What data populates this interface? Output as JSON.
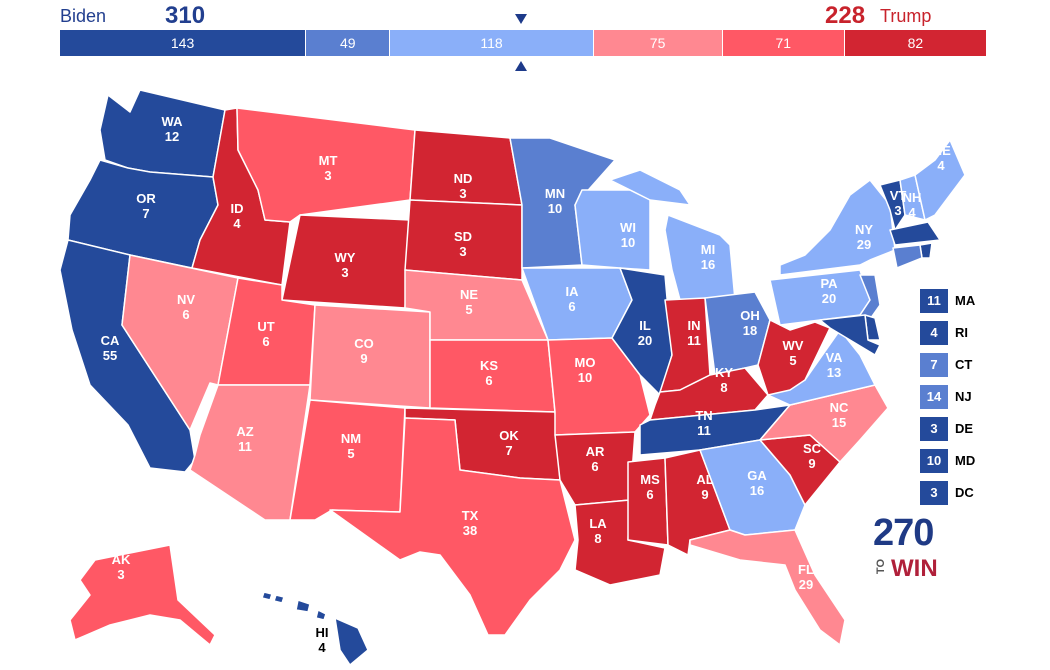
{
  "header": {
    "left_name": "Biden",
    "left_total": "310",
    "right_name": "Trump",
    "right_total": "228"
  },
  "segments": [
    {
      "value": "143",
      "color": "#244a9b"
    },
    {
      "value": "49",
      "color": "#5a7fd0"
    },
    {
      "value": "118",
      "color": "#8aaff9"
    },
    {
      "value": "75",
      "color": "#ff8891"
    },
    {
      "value": "71",
      "color": "#ff5865"
    },
    {
      "value": "82",
      "color": "#d22532"
    }
  ],
  "categories": {
    "safe_dem": "#244a9b",
    "likely_dem": "#5a7fd0",
    "lean_dem": "#8aaff9",
    "lean_rep": "#ff8891",
    "likely_rep": "#ff5865",
    "safe_rep": "#d22532"
  },
  "states": [
    {
      "abbr": "WA",
      "votes": "12",
      "cat": "safe_dem"
    },
    {
      "abbr": "OR",
      "votes": "7",
      "cat": "safe_dem"
    },
    {
      "abbr": "CA",
      "votes": "55",
      "cat": "safe_dem"
    },
    {
      "abbr": "ID",
      "votes": "4",
      "cat": "safe_rep"
    },
    {
      "abbr": "NV",
      "votes": "6",
      "cat": "lean_rep"
    },
    {
      "abbr": "MT",
      "votes": "3",
      "cat": "likely_rep"
    },
    {
      "abbr": "WY",
      "votes": "3",
      "cat": "safe_rep"
    },
    {
      "abbr": "UT",
      "votes": "6",
      "cat": "likely_rep"
    },
    {
      "abbr": "AZ",
      "votes": "11",
      "cat": "lean_rep"
    },
    {
      "abbr": "CO",
      "votes": "9",
      "cat": "lean_rep"
    },
    {
      "abbr": "NM",
      "votes": "5",
      "cat": "likely_rep"
    },
    {
      "abbr": "ND",
      "votes": "3",
      "cat": "safe_rep"
    },
    {
      "abbr": "SD",
      "votes": "3",
      "cat": "safe_rep"
    },
    {
      "abbr": "NE",
      "votes": "5",
      "cat": "lean_rep"
    },
    {
      "abbr": "KS",
      "votes": "6",
      "cat": "likely_rep"
    },
    {
      "abbr": "OK",
      "votes": "7",
      "cat": "safe_rep"
    },
    {
      "abbr": "TX",
      "votes": "38",
      "cat": "likely_rep"
    },
    {
      "abbr": "MN",
      "votes": "10",
      "cat": "likely_dem"
    },
    {
      "abbr": "IA",
      "votes": "6",
      "cat": "lean_dem"
    },
    {
      "abbr": "MO",
      "votes": "10",
      "cat": "likely_rep"
    },
    {
      "abbr": "AR",
      "votes": "6",
      "cat": "safe_rep"
    },
    {
      "abbr": "LA",
      "votes": "8",
      "cat": "safe_rep"
    },
    {
      "abbr": "WI",
      "votes": "10",
      "cat": "lean_dem"
    },
    {
      "abbr": "IL",
      "votes": "20",
      "cat": "safe_dem"
    },
    {
      "abbr": "MI",
      "votes": "16",
      "cat": "lean_dem"
    },
    {
      "abbr": "IN",
      "votes": "11",
      "cat": "safe_rep"
    },
    {
      "abbr": "OH",
      "votes": "18",
      "cat": "likely_dem"
    },
    {
      "abbr": "KY",
      "votes": "8",
      "cat": "safe_rep"
    },
    {
      "abbr": "TN",
      "votes": "11",
      "cat": "safe_dem"
    },
    {
      "abbr": "MS",
      "votes": "6",
      "cat": "safe_rep"
    },
    {
      "abbr": "AL",
      "votes": "9",
      "cat": "safe_rep"
    },
    {
      "abbr": "GA",
      "votes": "16",
      "cat": "lean_dem"
    },
    {
      "abbr": "FL",
      "votes": "29",
      "cat": "lean_rep"
    },
    {
      "abbr": "SC",
      "votes": "9",
      "cat": "safe_rep"
    },
    {
      "abbr": "NC",
      "votes": "15",
      "cat": "lean_rep"
    },
    {
      "abbr": "VA",
      "votes": "13",
      "cat": "lean_dem"
    },
    {
      "abbr": "WV",
      "votes": "5",
      "cat": "safe_rep"
    },
    {
      "abbr": "PA",
      "votes": "20",
      "cat": "lean_dem"
    },
    {
      "abbr": "NY",
      "votes": "29",
      "cat": "lean_dem"
    },
    {
      "abbr": "VT",
      "votes": "3",
      "cat": "safe_dem"
    },
    {
      "abbr": "NH",
      "votes": "4",
      "cat": "lean_dem"
    },
    {
      "abbr": "ME",
      "votes": "4",
      "cat": "lean_dem"
    },
    {
      "abbr": "AK",
      "votes": "3",
      "cat": "likely_rep"
    },
    {
      "abbr": "HI",
      "votes": "4",
      "cat": "safe_dem"
    }
  ],
  "small_states": [
    {
      "abbr": "MA",
      "votes": "11",
      "cat": "safe_dem"
    },
    {
      "abbr": "RI",
      "votes": "4",
      "cat": "safe_dem"
    },
    {
      "abbr": "CT",
      "votes": "7",
      "cat": "likely_dem"
    },
    {
      "abbr": "NJ",
      "votes": "14",
      "cat": "likely_dem"
    },
    {
      "abbr": "DE",
      "votes": "3",
      "cat": "safe_dem"
    },
    {
      "abbr": "MD",
      "votes": "10",
      "cat": "safe_dem"
    },
    {
      "abbr": "DC",
      "votes": "3",
      "cat": "safe_dem"
    }
  ],
  "logo": {
    "number": "270",
    "to": "TO",
    "win": "WIN"
  }
}
